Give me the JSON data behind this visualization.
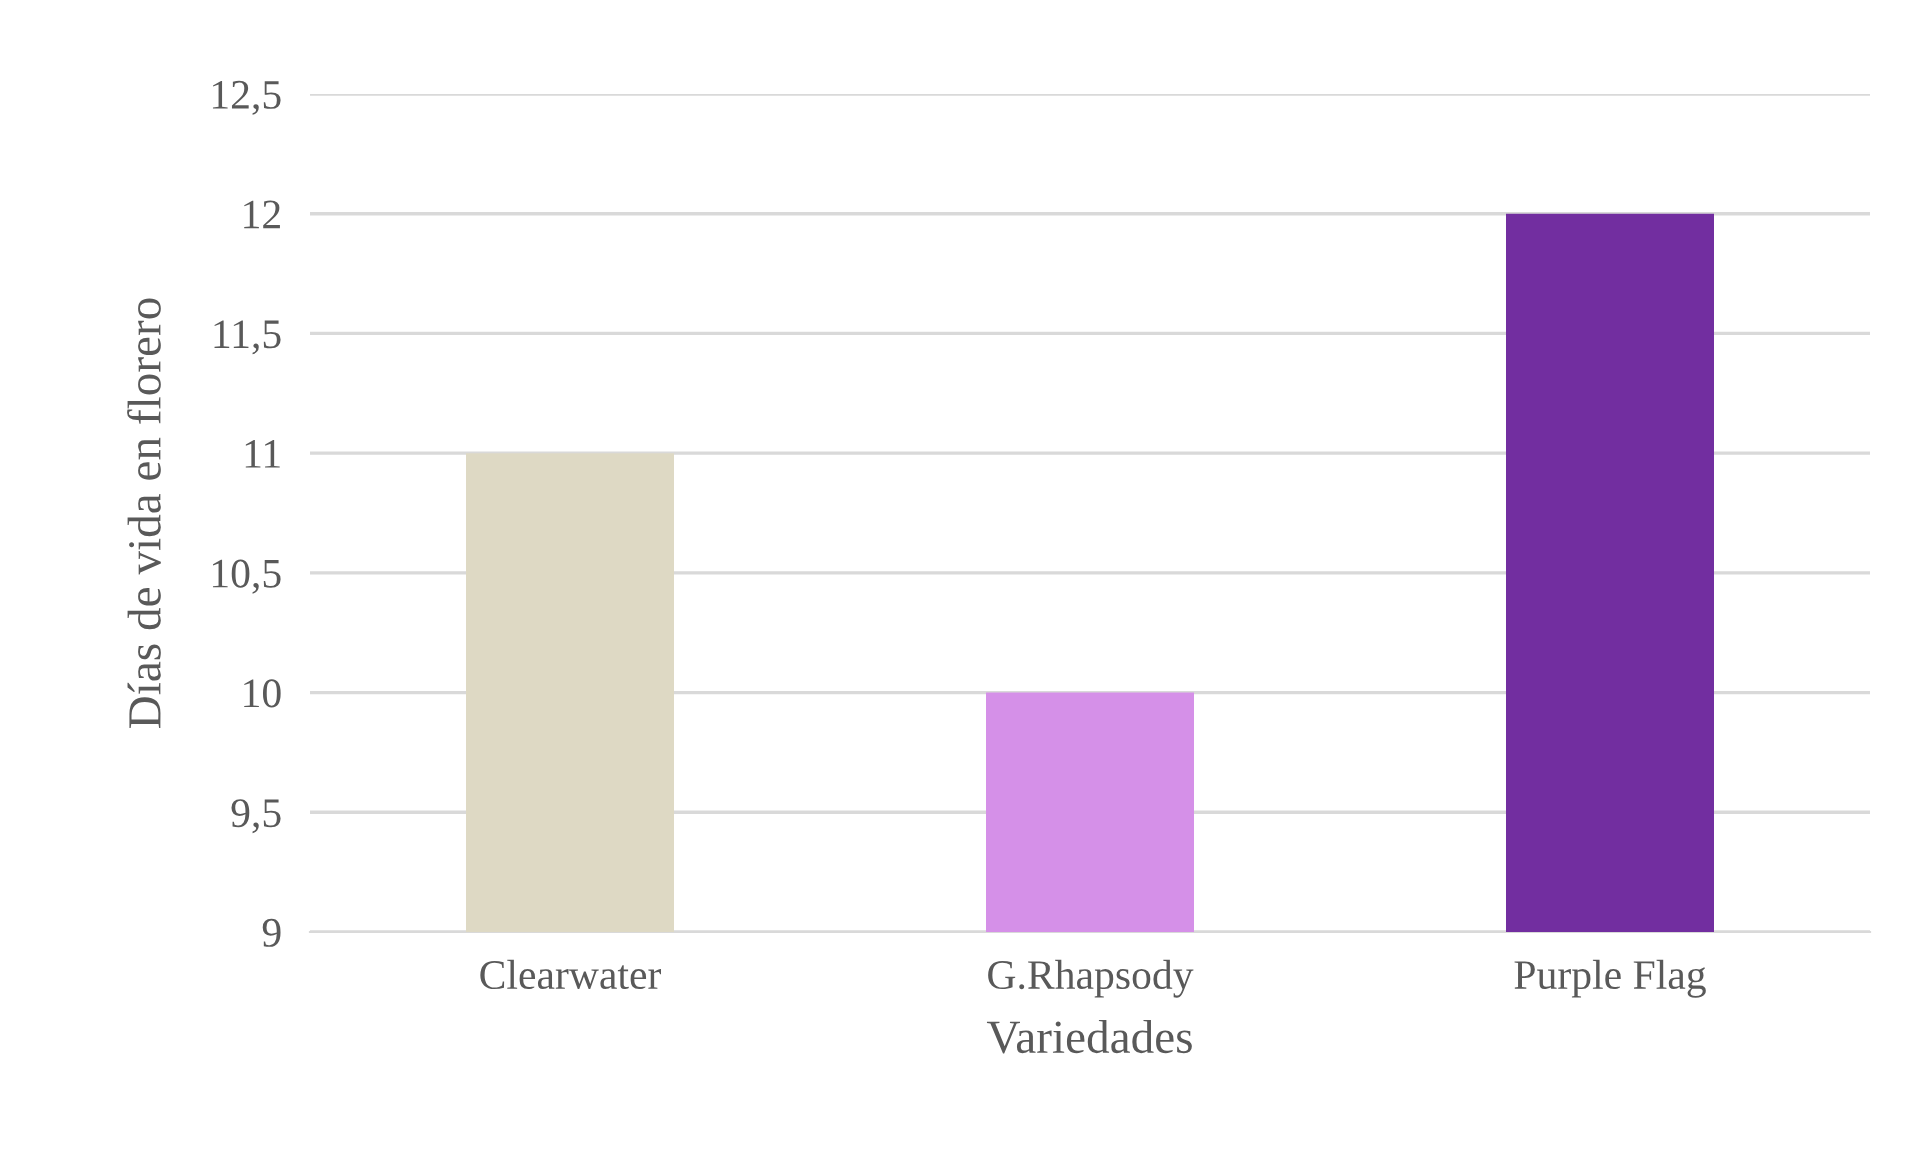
{
  "chart_data": {
    "type": "bar",
    "xlabel": "Variedades",
    "ylabel": "Días de vida en florero",
    "categories": [
      "Clearwater",
      "G.Rhapsody",
      "Purple Flag"
    ],
    "values": [
      11,
      10,
      12
    ],
    "colors": [
      "#ded9c4",
      "#d590e8",
      "#722ea0"
    ],
    "ylim": [
      9,
      12.5
    ],
    "yticks": [
      9,
      {
        "value": 9.5,
        "label": "9,5"
      },
      10,
      {
        "value": 10.5,
        "label": "10,5"
      },
      11,
      {
        "value": 11.5,
        "label": "11,5"
      },
      12,
      {
        "value": 12.5,
        "label": "12,5"
      }
    ],
    "grid": "y"
  }
}
